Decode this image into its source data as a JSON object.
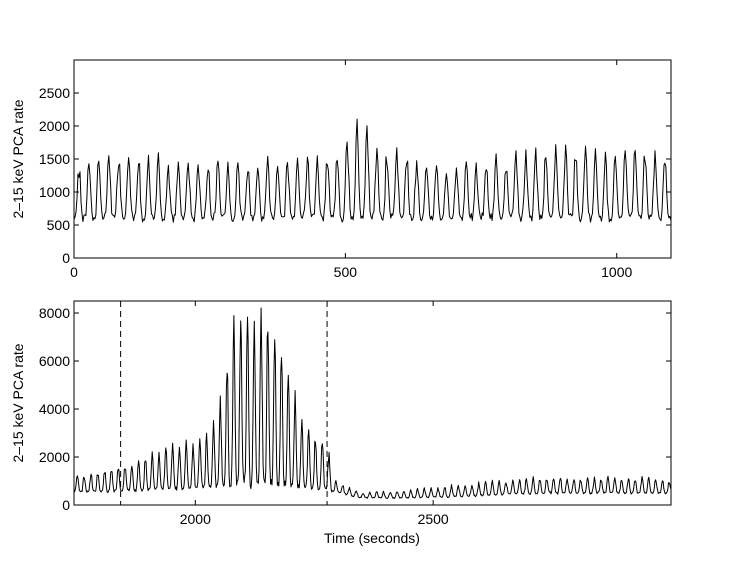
{
  "chart_data": [
    {
      "type": "line",
      "title": "",
      "xlabel": "",
      "ylabel": "2–15 keV PCA rate",
      "xlim": [
        0,
        1100
      ],
      "ylim": [
        0,
        3000
      ],
      "xticks": [
        0,
        500,
        1000
      ],
      "yticks": [
        0,
        500,
        1000,
        1500,
        2000,
        2500
      ],
      "series": [
        {
          "period": 18.3,
          "x": [
            0,
            60,
            120,
            180,
            240,
            300,
            360,
            420,
            480,
            520,
            540,
            560,
            620,
            680,
            740,
            800,
            860,
            920,
            980,
            1020,
            1060,
            1100
          ],
          "peak": [
            1300,
            1550,
            1500,
            1400,
            1450,
            1400,
            1500,
            1450,
            1550,
            1950,
            1900,
            1650,
            1500,
            1400,
            1400,
            1450,
            1600,
            1600,
            1500,
            1650,
            1600,
            1550
          ],
          "trough": [
            600,
            620,
            610,
            600,
            620,
            610,
            610,
            620,
            600,
            600,
            610,
            620,
            610,
            600,
            610,
            620,
            620,
            610,
            600,
            610,
            620,
            600
          ]
        }
      ]
    },
    {
      "type": "line",
      "title": "",
      "xlabel": "Time (seconds)",
      "ylabel": "2–15 keV PCA rate",
      "xlim": [
        1745,
        3000
      ],
      "ylim": [
        0,
        8500
      ],
      "xticks": [
        2000,
        2500
      ],
      "yticks": [
        0,
        2000,
        4000,
        6000,
        8000
      ],
      "vlines": [
        1843,
        2277
      ],
      "series": [
        {
          "period": 14.3,
          "x": [
            1745,
            1790,
            1843,
            1880,
            1920,
            1960,
            2000,
            2030,
            2055,
            2080,
            2100,
            2120,
            2140,
            2160,
            2180,
            2200,
            2230,
            2260,
            2277,
            2290,
            2350,
            2450,
            2550,
            2650,
            2750,
            2850,
            2950,
            3000
          ],
          "peak": [
            1200,
            1300,
            1600,
            1800,
            2100,
            2500,
            2600,
            2900,
            4500,
            7200,
            8100,
            7900,
            8100,
            7400,
            6400,
            5000,
            3200,
            2700,
            2600,
            1000,
            500,
            600,
            800,
            1000,
            1100,
            1100,
            1100,
            1000
          ],
          "trough": [
            550,
            550,
            600,
            600,
            650,
            700,
            700,
            750,
            800,
            900,
            950,
            950,
            950,
            900,
            850,
            800,
            750,
            700,
            700,
            550,
            300,
            300,
            350,
            450,
            500,
            500,
            500,
            500
          ]
        }
      ]
    }
  ]
}
